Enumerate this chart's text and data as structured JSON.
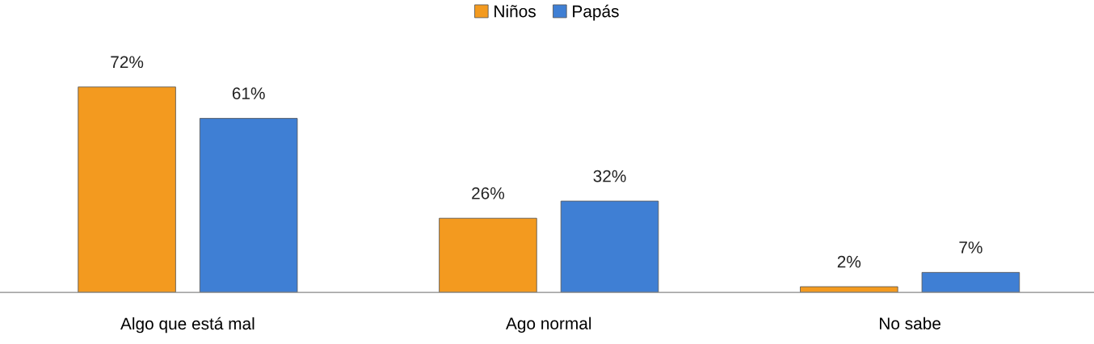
{
  "chart_data": {
    "type": "bar",
    "categories": [
      "Algo que está mal",
      "Ago normal",
      "No sabe"
    ],
    "series": [
      {
        "name": "Niños",
        "color": "#f39a1f",
        "values": [
          72,
          26,
          2
        ],
        "value_labels": [
          "72%",
          "26%",
          "2%"
        ]
      },
      {
        "name": "Papás",
        "color": "#3f7fd4",
        "values": [
          61,
          32,
          7
        ],
        "value_labels": [
          "61%",
          "32%",
          "7%"
        ]
      }
    ],
    "legend": "top",
    "grid": false,
    "tick_labels": "x"
  }
}
